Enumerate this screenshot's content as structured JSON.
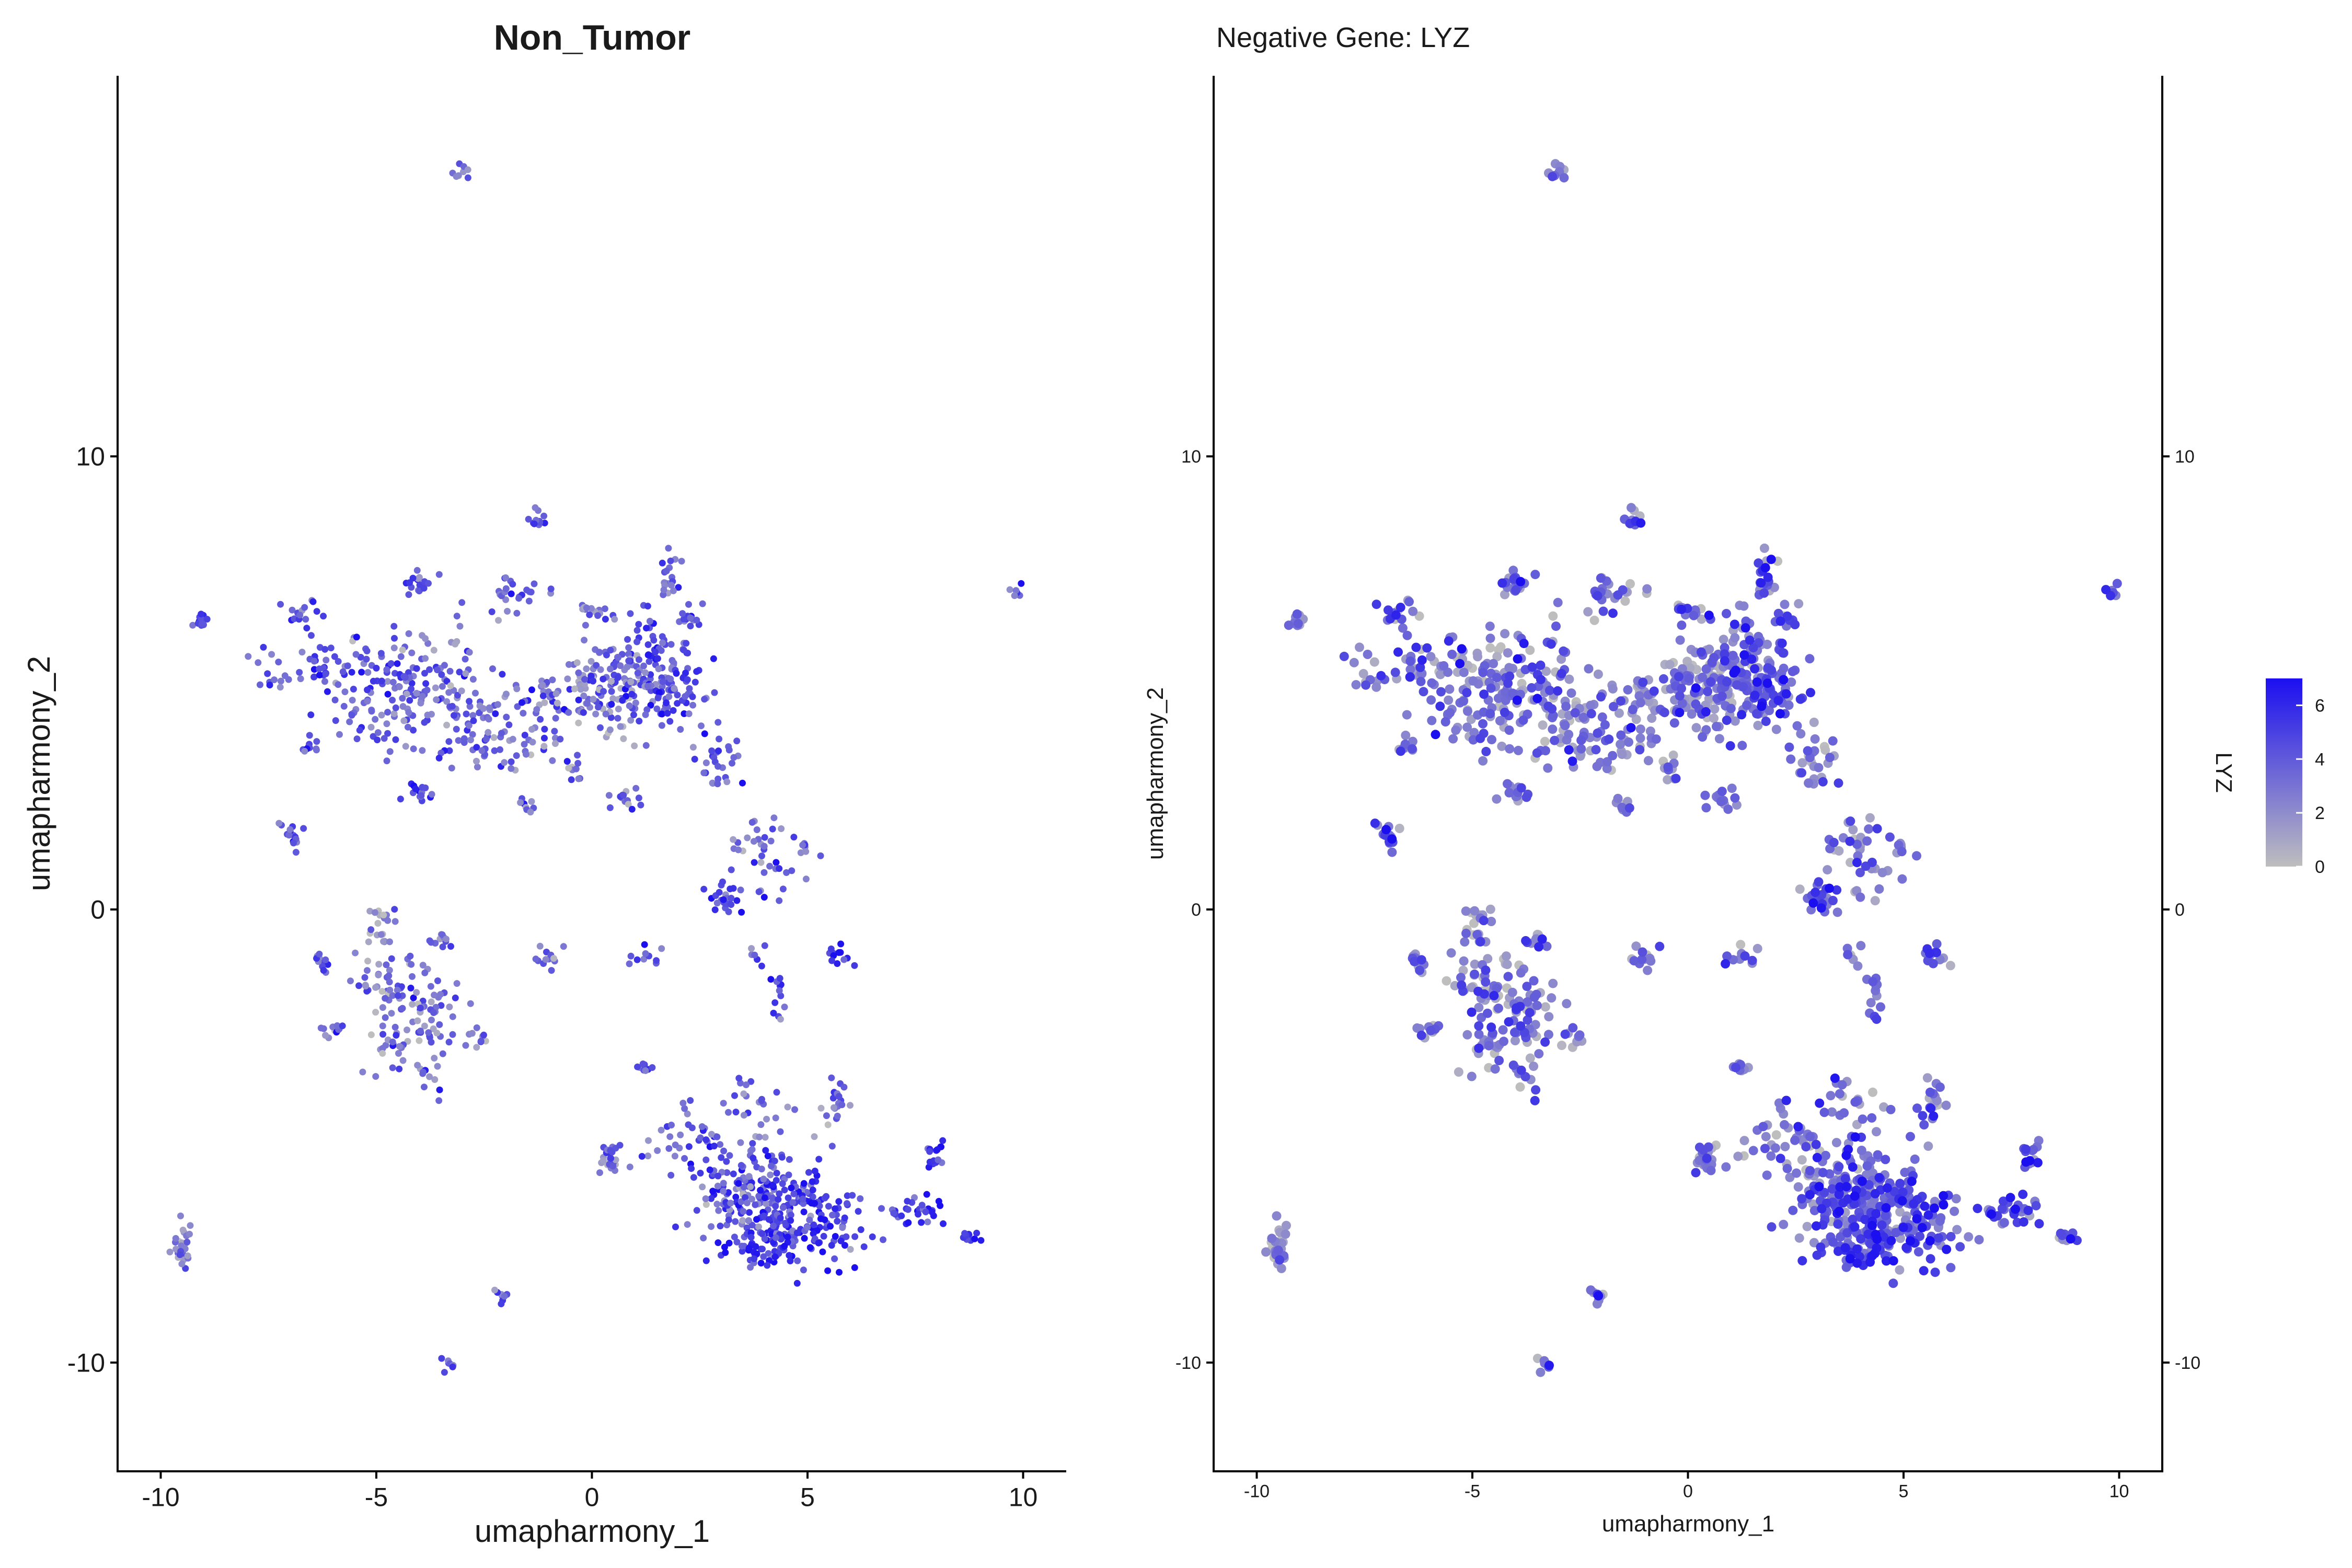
{
  "chart_data": [
    {
      "type": "scatter",
      "title": "Non_Tumor",
      "xlabel": "umapharmony_1",
      "ylabel": "umapharmony_2",
      "xlim": [
        -11,
        11
      ],
      "ylim": [
        -12.4,
        18.4
      ],
      "xticks": [
        -10,
        -5,
        0,
        5,
        10
      ],
      "xtick_labels": [
        "-10",
        "-5",
        "0",
        "5",
        "10"
      ],
      "yticks": [
        -10,
        0,
        10
      ],
      "ytick_labels": [
        "-10",
        "0",
        "10"
      ],
      "grid": false,
      "color_low": "#bebebe",
      "color_high": "#1b0ff0"
    },
    {
      "type": "scatter",
      "title": "Negative Gene: LYZ",
      "xlabel": "umapharmony_1",
      "ylabel": "umapharmony_2",
      "xlim": [
        -11,
        11
      ],
      "ylim": [
        -12.4,
        18.4
      ],
      "xticks": [
        -10,
        -5,
        0,
        5,
        10
      ],
      "xtick_labels": [
        "-10",
        "-5",
        "0",
        "5",
        "10"
      ],
      "yticks": [
        -10,
        0,
        10
      ],
      "ytick_labels": [
        "-10",
        "0",
        "10"
      ],
      "secondary_y_axis": true,
      "grid": false,
      "legend": {
        "title": "LYZ",
        "position": "right",
        "range": [
          0,
          7
        ],
        "ticks": [
          0,
          2,
          4,
          6
        ],
        "tick_labels": [
          "0",
          "2",
          "4",
          "6"
        ],
        "color_low": "#bebebe",
        "color_high": "#1b0ff0"
      }
    }
  ],
  "clusters": [
    {
      "cx": -3.1,
      "cy": 16.3,
      "sx": 0.12,
      "sy": 0.12,
      "n": 8,
      "expr": 0.5
    },
    {
      "cx": 9.8,
      "cy": 7.0,
      "sx": 0.1,
      "sy": 0.08,
      "n": 6,
      "expr": 0.6
    },
    {
      "cx": -9.1,
      "cy": 6.3,
      "sx": 0.15,
      "sy": 0.12,
      "n": 12,
      "expr": 0.65
    },
    {
      "cx": -7.5,
      "cy": 5.2,
      "sx": 0.3,
      "sy": 0.3,
      "n": 14,
      "expr": 0.55
    },
    {
      "cx": -6.7,
      "cy": 6.6,
      "sx": 0.2,
      "sy": 0.15,
      "n": 15,
      "expr": 0.65
    },
    {
      "cx": -6.3,
      "cy": 5.4,
      "sx": 0.2,
      "sy": 0.2,
      "n": 20,
      "expr": 0.6
    },
    {
      "cx": -5.0,
      "cy": 4.8,
      "sx": 0.7,
      "sy": 0.65,
      "n": 120,
      "expr": 0.55
    },
    {
      "cx": -4.0,
      "cy": 7.2,
      "sx": 0.2,
      "sy": 0.15,
      "n": 20,
      "expr": 0.6
    },
    {
      "cx": -3.7,
      "cy": 5.2,
      "sx": 0.6,
      "sy": 0.7,
      "n": 60,
      "expr": 0.5
    },
    {
      "cx": -2.8,
      "cy": 4.3,
      "sx": 0.5,
      "sy": 0.4,
      "n": 40,
      "expr": 0.5
    },
    {
      "cx": -2.5,
      "cy": 3.5,
      "sx": 0.5,
      "sy": 0.3,
      "n": 30,
      "expr": 0.5
    },
    {
      "cx": -1.7,
      "cy": 6.9,
      "sx": 0.35,
      "sy": 0.25,
      "n": 25,
      "expr": 0.6
    },
    {
      "cx": -1.2,
      "cy": 4.5,
      "sx": 0.5,
      "sy": 0.4,
      "n": 40,
      "expr": 0.45
    },
    {
      "cx": -1.3,
      "cy": 3.6,
      "sx": 0.3,
      "sy": 0.3,
      "n": 15,
      "expr": 0.5
    },
    {
      "cx": -1.3,
      "cy": 8.6,
      "sx": 0.12,
      "sy": 0.15,
      "n": 12,
      "expr": 0.55
    },
    {
      "cx": -7.0,
      "cy": 1.7,
      "sx": 0.15,
      "sy": 0.2,
      "n": 15,
      "expr": 0.6
    },
    {
      "cx": -6.5,
      "cy": 3.6,
      "sx": 0.12,
      "sy": 0.12,
      "n": 10,
      "expr": 0.6
    },
    {
      "cx": -4.0,
      "cy": 2.6,
      "sx": 0.2,
      "sy": 0.15,
      "n": 15,
      "expr": 0.6
    },
    {
      "cx": -1.5,
      "cy": 2.3,
      "sx": 0.12,
      "sy": 0.1,
      "n": 8,
      "expr": 0.55
    },
    {
      "cx": 0.3,
      "cy": 4.8,
      "sx": 0.55,
      "sy": 0.55,
      "n": 110,
      "expr": 0.4
    },
    {
      "cx": 1.2,
      "cy": 5.4,
      "sx": 0.55,
      "sy": 0.6,
      "n": 110,
      "expr": 0.6
    },
    {
      "cx": 2.0,
      "cy": 4.9,
      "sx": 0.45,
      "sy": 0.55,
      "n": 60,
      "expr": 0.65
    },
    {
      "cx": 1.8,
      "cy": 7.5,
      "sx": 0.15,
      "sy": 0.25,
      "n": 20,
      "expr": 0.6
    },
    {
      "cx": 2.2,
      "cy": 6.5,
      "sx": 0.15,
      "sy": 0.15,
      "n": 15,
      "expr": 0.6
    },
    {
      "cx": -0.1,
      "cy": 6.6,
      "sx": 0.12,
      "sy": 0.12,
      "n": 12,
      "expr": 0.4
    },
    {
      "cx": 0.8,
      "cy": 2.4,
      "sx": 0.2,
      "sy": 0.15,
      "n": 15,
      "expr": 0.5
    },
    {
      "cx": -0.4,
      "cy": 3.1,
      "sx": 0.15,
      "sy": 0.15,
      "n": 10,
      "expr": 0.4
    },
    {
      "cx": 3.0,
      "cy": 3.3,
      "sx": 0.35,
      "sy": 0.3,
      "n": 30,
      "expr": 0.55
    },
    {
      "cx": 3.7,
      "cy": 1.6,
      "sx": 0.3,
      "sy": 0.25,
      "n": 20,
      "expr": 0.45
    },
    {
      "cx": 3.1,
      "cy": 0.3,
      "sx": 0.2,
      "sy": 0.25,
      "n": 25,
      "expr": 0.7
    },
    {
      "cx": 4.3,
      "cy": 0.8,
      "sx": 0.3,
      "sy": 0.3,
      "n": 15,
      "expr": 0.55
    },
    {
      "cx": 5.0,
      "cy": 1.3,
      "sx": 0.15,
      "sy": 0.12,
      "n": 8,
      "expr": 0.45
    },
    {
      "cx": 5.7,
      "cy": -1.0,
      "sx": 0.15,
      "sy": 0.12,
      "n": 12,
      "expr": 0.75
    },
    {
      "cx": 4.3,
      "cy": -2.1,
      "sx": 0.12,
      "sy": 0.3,
      "n": 12,
      "expr": 0.75
    },
    {
      "cx": 3.7,
      "cy": -1.0,
      "sx": 0.15,
      "sy": 0.15,
      "n": 6,
      "expr": 0.6
    },
    {
      "cx": -6.3,
      "cy": -1.2,
      "sx": 0.15,
      "sy": 0.15,
      "n": 12,
      "expr": 0.55
    },
    {
      "cx": -6.0,
      "cy": -2.7,
      "sx": 0.15,
      "sy": 0.12,
      "n": 12,
      "expr": 0.5
    },
    {
      "cx": -4.9,
      "cy": -0.3,
      "sx": 0.2,
      "sy": 0.3,
      "n": 20,
      "expr": 0.35
    },
    {
      "cx": -4.8,
      "cy": -1.7,
      "sx": 0.35,
      "sy": 0.45,
      "n": 40,
      "expr": 0.45
    },
    {
      "cx": -3.8,
      "cy": -2.4,
      "sx": 0.45,
      "sy": 0.55,
      "n": 60,
      "expr": 0.5
    },
    {
      "cx": -4.5,
      "cy": -3.0,
      "sx": 0.3,
      "sy": 0.3,
      "n": 25,
      "expr": 0.5
    },
    {
      "cx": -3.5,
      "cy": -0.7,
      "sx": 0.15,
      "sy": 0.12,
      "n": 10,
      "expr": 0.5
    },
    {
      "cx": -2.7,
      "cy": -2.9,
      "sx": 0.15,
      "sy": 0.12,
      "n": 10,
      "expr": 0.45
    },
    {
      "cx": -3.8,
      "cy": -3.8,
      "sx": 0.15,
      "sy": 0.2,
      "n": 10,
      "expr": 0.5
    },
    {
      "cx": -1.1,
      "cy": -1.0,
      "sx": 0.2,
      "sy": 0.15,
      "n": 12,
      "expr": 0.55
    },
    {
      "cx": 1.2,
      "cy": -1.0,
      "sx": 0.15,
      "sy": 0.12,
      "n": 10,
      "expr": 0.6
    },
    {
      "cx": 1.2,
      "cy": -3.5,
      "sx": 0.12,
      "sy": 0.12,
      "n": 8,
      "expr": 0.55
    },
    {
      "cx": 0.4,
      "cy": -5.5,
      "sx": 0.2,
      "sy": 0.2,
      "n": 25,
      "expr": 0.45
    },
    {
      "cx": 2.3,
      "cy": -5.0,
      "sx": 0.5,
      "sy": 0.4,
      "n": 35,
      "expr": 0.55
    },
    {
      "cx": 3.8,
      "cy": -4.5,
      "sx": 0.4,
      "sy": 0.4,
      "n": 25,
      "expr": 0.55
    },
    {
      "cx": 5.7,
      "cy": -4.3,
      "sx": 0.2,
      "sy": 0.3,
      "n": 20,
      "expr": 0.5
    },
    {
      "cx": 3.7,
      "cy": -6.2,
      "sx": 0.75,
      "sy": 0.55,
      "n": 180,
      "expr": 0.65
    },
    {
      "cx": 4.9,
      "cy": -6.9,
      "sx": 0.75,
      "sy": 0.5,
      "n": 150,
      "expr": 0.75
    },
    {
      "cx": 3.9,
      "cy": -7.5,
      "sx": 0.5,
      "sy": 0.2,
      "n": 50,
      "expr": 0.8
    },
    {
      "cx": 7.5,
      "cy": -6.6,
      "sx": 0.3,
      "sy": 0.2,
      "n": 30,
      "expr": 0.75
    },
    {
      "cx": 8.0,
      "cy": -5.5,
      "sx": 0.15,
      "sy": 0.2,
      "n": 15,
      "expr": 0.7
    },
    {
      "cx": 8.8,
      "cy": -7.2,
      "sx": 0.15,
      "sy": 0.1,
      "n": 10,
      "expr": 0.7
    },
    {
      "cx": -9.5,
      "cy": -7.5,
      "sx": 0.12,
      "sy": 0.3,
      "n": 30,
      "expr": 0.35
    },
    {
      "cx": -3.3,
      "cy": -10.0,
      "sx": 0.1,
      "sy": 0.1,
      "n": 8,
      "expr": 0.4
    },
    {
      "cx": -2.1,
      "cy": -8.5,
      "sx": 0.1,
      "sy": 0.12,
      "n": 8,
      "expr": 0.6
    }
  ]
}
